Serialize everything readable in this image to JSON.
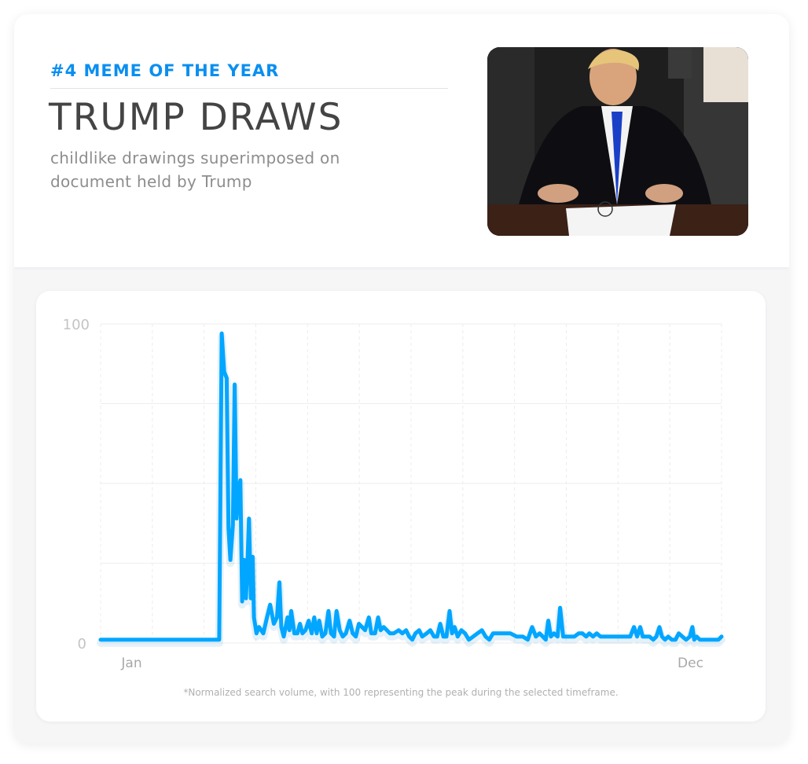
{
  "header": {
    "rank_label": "#4 MEME OF THE YEAR",
    "title": "TRUMP DRAWS",
    "subtitle": "childlike drawings superimposed on document held by Trump"
  },
  "thumbnail": {
    "description_icon": "meme-photo"
  },
  "footnote": "*Normalized search volume, with 100 representing the peak during the selected timeframe.",
  "colors": {
    "accent": "#0a8ff0",
    "line": "#00a6ff",
    "title": "#444444",
    "subtitle": "#8d8d8d"
  },
  "chart_data": {
    "type": "line",
    "title": "",
    "xlabel": "",
    "ylabel": "",
    "ylim": [
      0,
      100
    ],
    "y_ticks": [
      "0",
      "100"
    ],
    "x_ticks": [
      {
        "label": "Jan",
        "x": 5
      },
      {
        "label": "Dec",
        "x": 95
      }
    ],
    "xlim": [
      0,
      100
    ],
    "grid": true,
    "series": [
      {
        "values": [
          [
            0,
            1
          ],
          [
            19.1,
            1
          ],
          [
            19.5,
            97
          ],
          [
            19.9,
            85
          ],
          [
            20.3,
            83
          ],
          [
            20.6,
            36
          ],
          [
            20.9,
            26
          ],
          [
            21.3,
            37
          ],
          [
            21.6,
            81
          ],
          [
            21.9,
            39
          ],
          [
            22.2,
            47
          ],
          [
            22.5,
            51
          ],
          [
            22.8,
            13
          ],
          [
            23.1,
            26
          ],
          [
            23.4,
            14
          ],
          [
            23.6,
            22
          ],
          [
            23.9,
            39
          ],
          [
            24.2,
            14
          ],
          [
            24.5,
            27
          ],
          [
            24.7,
            8
          ],
          [
            25.1,
            3
          ],
          [
            25.5,
            5
          ],
          [
            26.2,
            3
          ],
          [
            26.8,
            8
          ],
          [
            27.3,
            12
          ],
          [
            27.9,
            6
          ],
          [
            28.4,
            8
          ],
          [
            28.8,
            19
          ],
          [
            29.1,
            5
          ],
          [
            29.5,
            2
          ],
          [
            30.1,
            8
          ],
          [
            30.4,
            4
          ],
          [
            30.7,
            10
          ],
          [
            31.2,
            3
          ],
          [
            31.7,
            3
          ],
          [
            32.1,
            6
          ],
          [
            32.5,
            3
          ],
          [
            33.0,
            4
          ],
          [
            33.5,
            7
          ],
          [
            34.0,
            3
          ],
          [
            34.4,
            8
          ],
          [
            34.8,
            3
          ],
          [
            35.2,
            7
          ],
          [
            35.7,
            2
          ],
          [
            36.2,
            3
          ],
          [
            36.7,
            10
          ],
          [
            37.1,
            3
          ],
          [
            37.6,
            2
          ],
          [
            38.0,
            10
          ],
          [
            38.5,
            4
          ],
          [
            39.0,
            2
          ],
          [
            39.5,
            3
          ],
          [
            40.1,
            7
          ],
          [
            40.6,
            3
          ],
          [
            41.1,
            2
          ],
          [
            41.6,
            6
          ],
          [
            42.1,
            5
          ],
          [
            42.6,
            4
          ],
          [
            43.2,
            8
          ],
          [
            43.6,
            3
          ],
          [
            44.2,
            3
          ],
          [
            44.7,
            8
          ],
          [
            45.1,
            4
          ],
          [
            45.6,
            5
          ],
          [
            46.1,
            4
          ],
          [
            46.6,
            3
          ],
          [
            47.2,
            3
          ],
          [
            48.0,
            4
          ],
          [
            48.6,
            3
          ],
          [
            49.2,
            4
          ],
          [
            49.7,
            2
          ],
          [
            50.2,
            1
          ],
          [
            50.7,
            3
          ],
          [
            51.3,
            4
          ],
          [
            51.8,
            2
          ],
          [
            52.5,
            3
          ],
          [
            53.1,
            4
          ],
          [
            53.7,
            2
          ],
          [
            54.2,
            2
          ],
          [
            54.7,
            6
          ],
          [
            55.2,
            2
          ],
          [
            55.7,
            2
          ],
          [
            56.2,
            10
          ],
          [
            56.6,
            3
          ],
          [
            57.0,
            5
          ],
          [
            57.5,
            2
          ],
          [
            58.1,
            4
          ],
          [
            58.7,
            3
          ],
          [
            59.3,
            1
          ],
          [
            60.0,
            2
          ],
          [
            60.7,
            3
          ],
          [
            61.4,
            4
          ],
          [
            62.0,
            2
          ],
          [
            62.6,
            1
          ],
          [
            63.2,
            3
          ],
          [
            64.0,
            3
          ],
          [
            65.0,
            3
          ],
          [
            66.0,
            3
          ],
          [
            67.0,
            2
          ],
          [
            68.0,
            2
          ],
          [
            68.8,
            1
          ],
          [
            69.5,
            5
          ],
          [
            70.1,
            2
          ],
          [
            70.7,
            3
          ],
          [
            71.2,
            2
          ],
          [
            71.7,
            1
          ],
          [
            72.1,
            7
          ],
          [
            72.5,
            2
          ],
          [
            73.0,
            3
          ],
          [
            73.6,
            2
          ],
          [
            74.0,
            11
          ],
          [
            74.5,
            2
          ],
          [
            75.1,
            2
          ],
          [
            75.7,
            2
          ],
          [
            76.3,
            2
          ],
          [
            77.0,
            3
          ],
          [
            77.6,
            3
          ],
          [
            78.2,
            2
          ],
          [
            78.7,
            3
          ],
          [
            79.3,
            2
          ],
          [
            79.9,
            3
          ],
          [
            80.5,
            2
          ],
          [
            81.1,
            2
          ],
          [
            81.7,
            2
          ],
          [
            82.3,
            2
          ],
          [
            82.9,
            2
          ],
          [
            83.5,
            2
          ],
          [
            84.1,
            2
          ],
          [
            84.7,
            2
          ],
          [
            85.3,
            2
          ],
          [
            85.9,
            5
          ],
          [
            86.4,
            2
          ],
          [
            86.9,
            5
          ],
          [
            87.3,
            2
          ],
          [
            87.8,
            2
          ],
          [
            88.4,
            2
          ],
          [
            89.0,
            1
          ],
          [
            89.5,
            2
          ],
          [
            90.0,
            5
          ],
          [
            90.4,
            2
          ],
          [
            90.9,
            1
          ],
          [
            91.4,
            2
          ],
          [
            92.0,
            1
          ],
          [
            92.6,
            1
          ],
          [
            93.1,
            3
          ],
          [
            93.7,
            2
          ],
          [
            94.3,
            1
          ],
          [
            94.9,
            2
          ],
          [
            95.3,
            5
          ],
          [
            95.6,
            1
          ],
          [
            96.0,
            2
          ],
          [
            96.5,
            1
          ],
          [
            97.0,
            1
          ],
          [
            97.5,
            1
          ],
          [
            98.0,
            1
          ],
          [
            98.5,
            1
          ],
          [
            99.0,
            1
          ],
          [
            99.5,
            1
          ],
          [
            100,
            2
          ]
        ]
      }
    ]
  }
}
